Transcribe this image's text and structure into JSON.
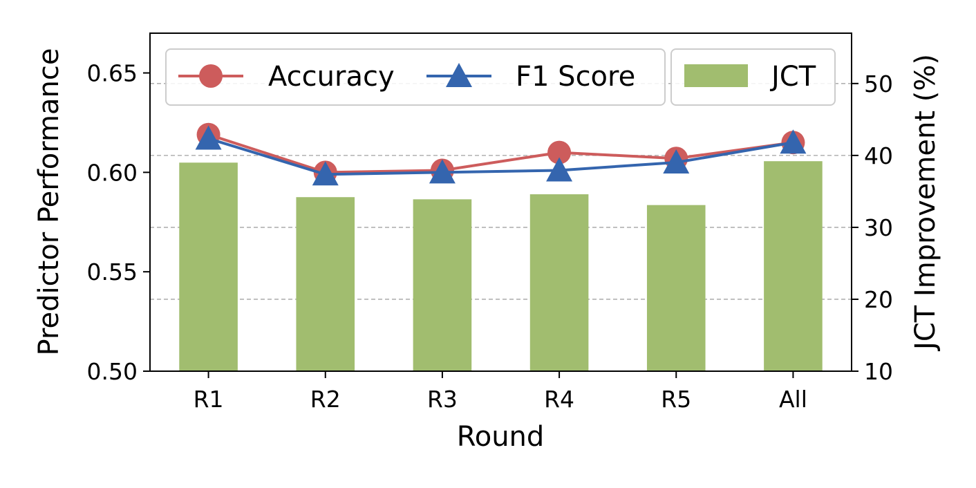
{
  "chart_data": {
    "type": "bar",
    "categories": [
      "R1",
      "R2",
      "R3",
      "R4",
      "R5",
      "All"
    ],
    "xlabel": "Round",
    "ylabel": "Predictor Performance",
    "y2label": "JCT Improvement (%)",
    "ylim": [
      0.5,
      0.67
    ],
    "y2lim": [
      10,
      57
    ],
    "yticks": [
      "0.50",
      "0.55",
      "0.60",
      "0.65"
    ],
    "y2ticks": [
      "10",
      "20",
      "30",
      "40",
      "50"
    ],
    "grid": "horizontal dashed, right axis",
    "legend_placement": "top",
    "series": [
      {
        "name": "Accuracy",
        "kind": "line",
        "marker": "circle",
        "axis": "left",
        "color": "#cd5c5c",
        "values": [
          0.619,
          0.6,
          0.601,
          0.61,
          0.607,
          0.615
        ]
      },
      {
        "name": "F1 Score",
        "kind": "line",
        "marker": "triangle",
        "axis": "left",
        "color": "#3465ae",
        "values": [
          0.617,
          0.599,
          0.6,
          0.601,
          0.605,
          0.615
        ]
      },
      {
        "name": "JCT",
        "kind": "bar",
        "axis": "right",
        "color": "#a1bd6f",
        "values": [
          39.0,
          34.2,
          33.9,
          34.6,
          33.1,
          39.2
        ]
      }
    ]
  }
}
